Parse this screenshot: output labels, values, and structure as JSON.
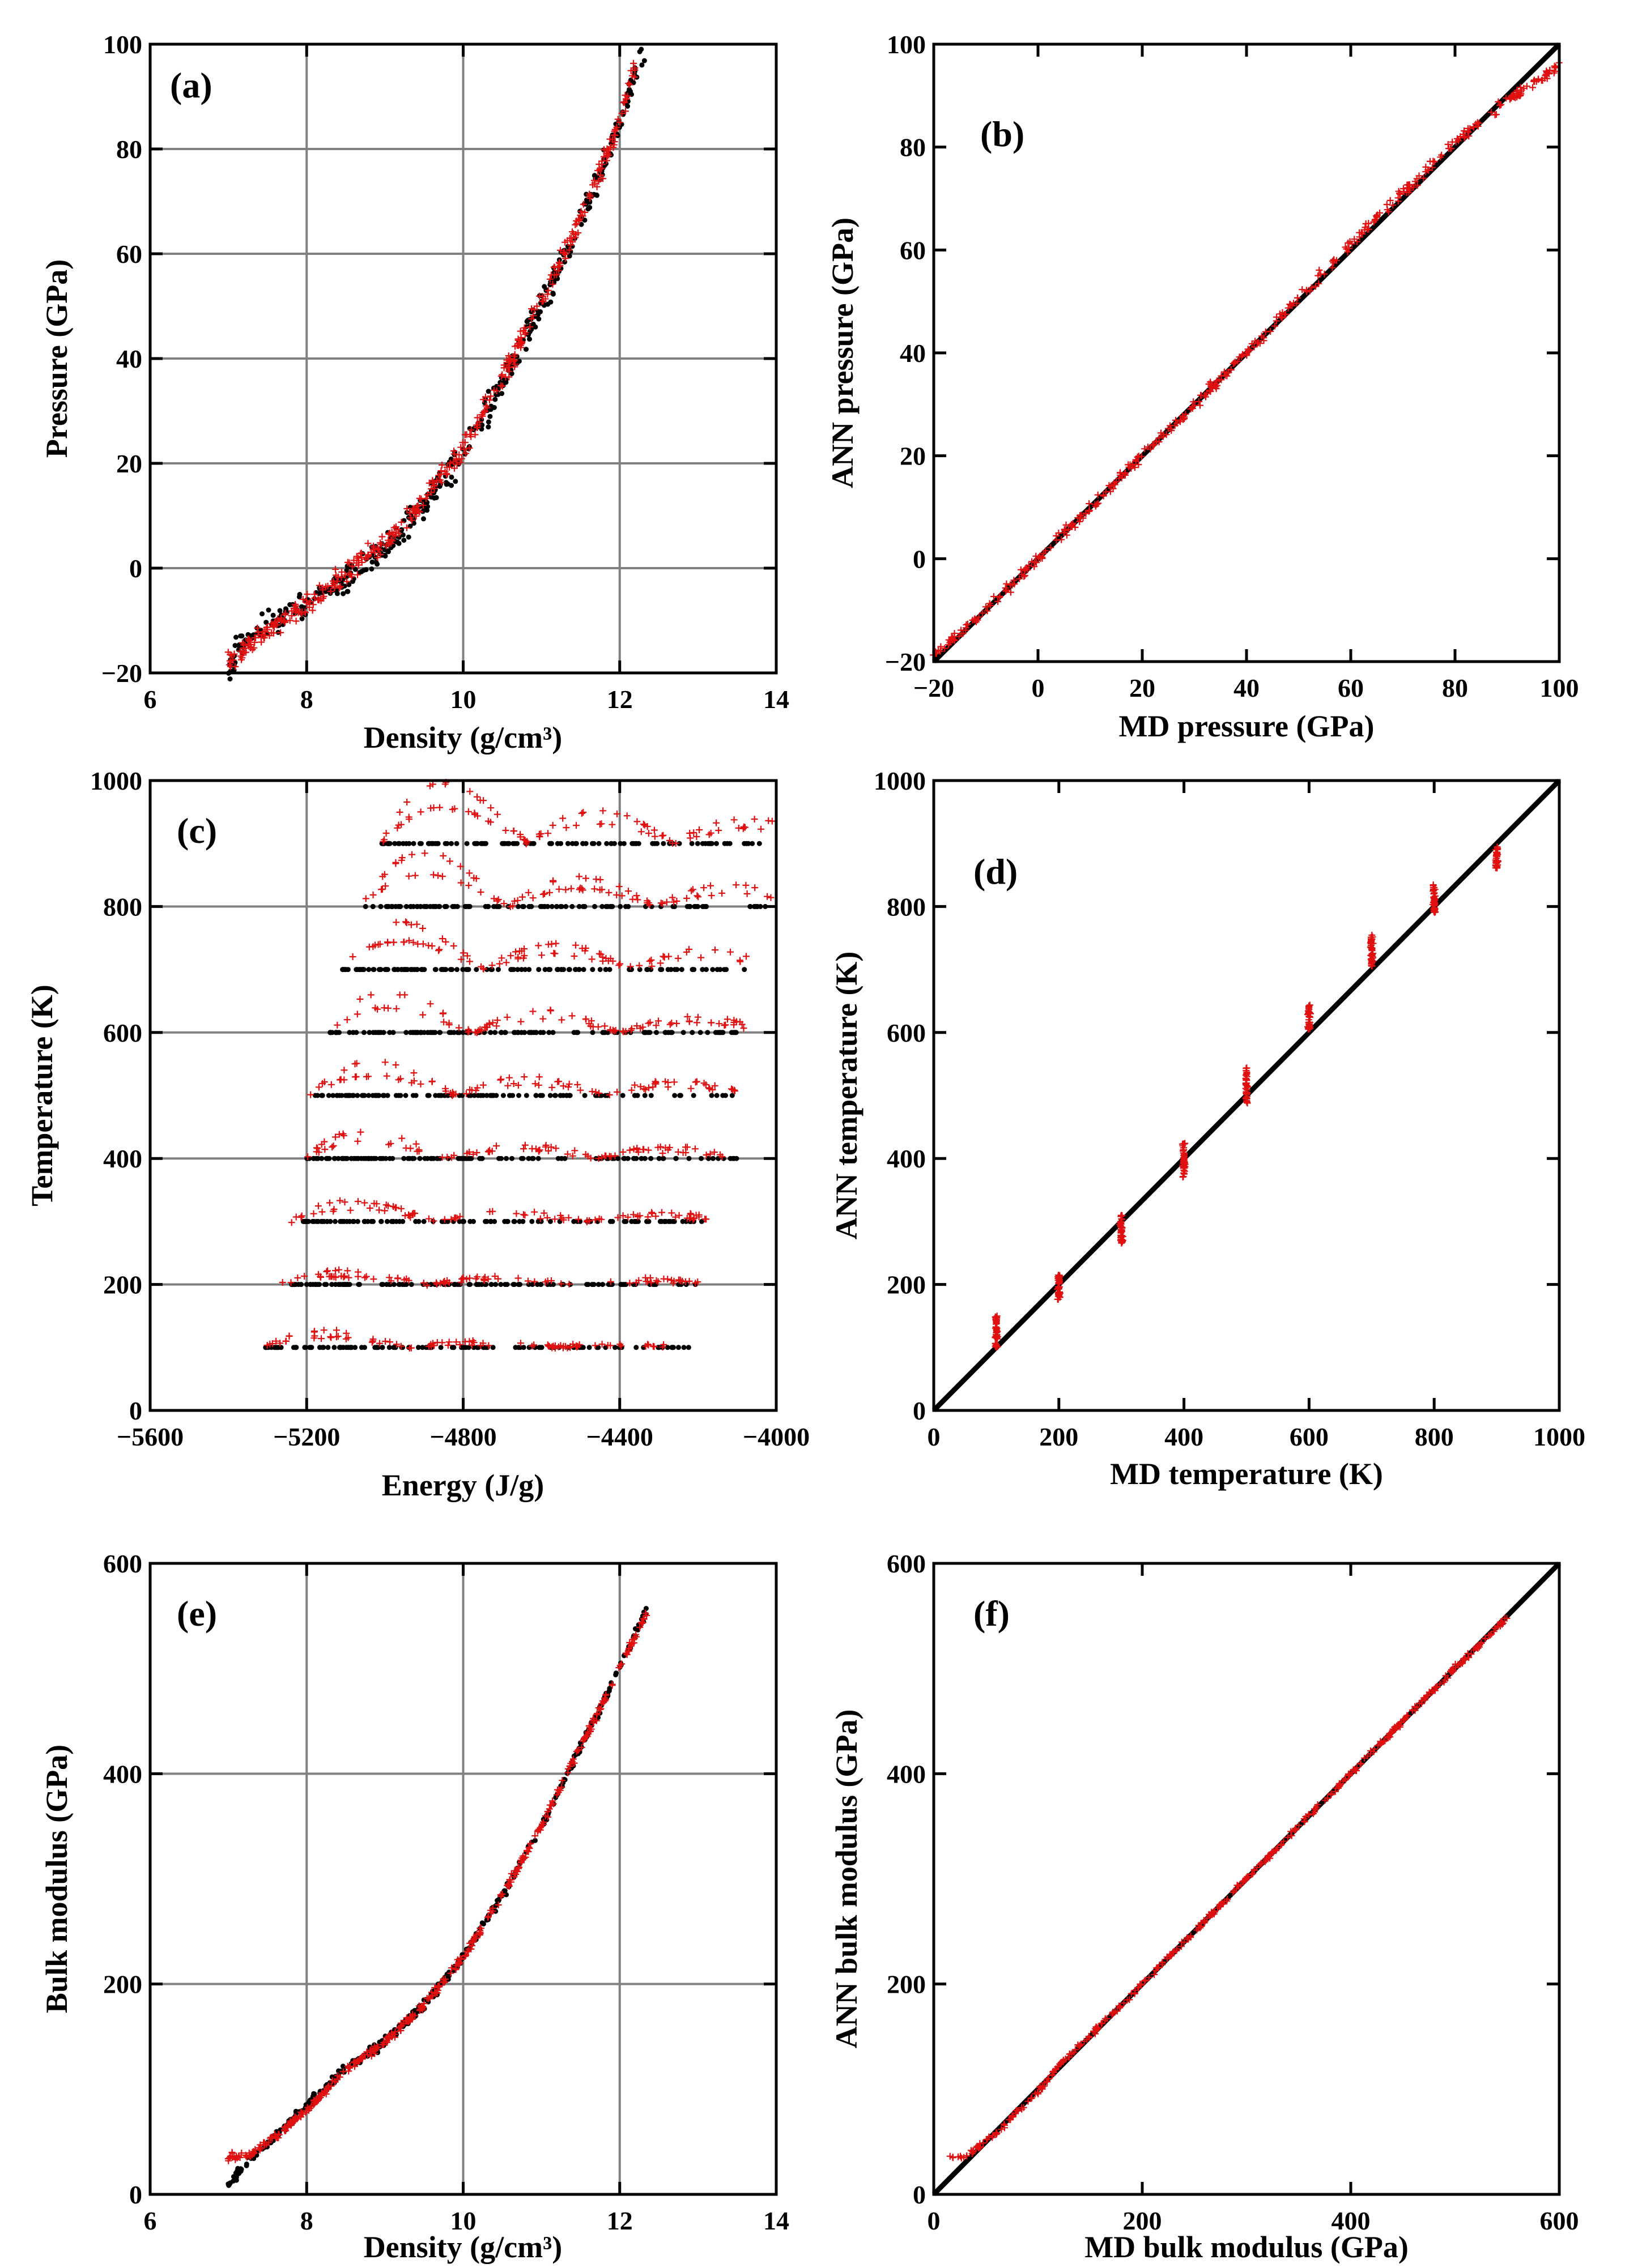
{
  "figure": {
    "colors": {
      "md": "#000000",
      "ann": "#e01010",
      "grid": "#808080",
      "axis": "#000000"
    }
  },
  "chart_data": [
    {
      "id": "a",
      "panel_label": "(a)",
      "type": "scatter",
      "xlabel": "Density (g/cm³)",
      "ylabel": "Pressure (GPa)",
      "xlim": [
        6,
        14
      ],
      "ylim": [
        -20,
        100
      ],
      "xticks": [
        6,
        8,
        10,
        12,
        14
      ],
      "yticks": [
        -20,
        0,
        20,
        40,
        60,
        80,
        100
      ],
      "xtick_labels": [
        "6",
        "8",
        "10",
        "12",
        "14"
      ],
      "ytick_labels": [
        "−20",
        "0",
        "20",
        "40",
        "60",
        "80",
        "100"
      ],
      "grid": true,
      "series": [
        {
          "name": "MD",
          "color": "#000000",
          "marker": "dot",
          "band": [
            [
              7.0,
              -19
            ],
            [
              7.2,
              -14
            ],
            [
              7.5,
              -11
            ],
            [
              8.0,
              -7
            ],
            [
              8.5,
              -2
            ],
            [
              9.0,
              4
            ],
            [
              9.5,
              12
            ],
            [
              10.0,
              22
            ],
            [
              10.5,
              35
            ],
            [
              11.0,
              50
            ],
            [
              11.5,
              66
            ],
            [
              12.0,
              85
            ],
            [
              12.3,
              99
            ]
          ],
          "spread": 4
        },
        {
          "name": "ANN",
          "color": "#e01010",
          "marker": "plus",
          "band": [
            [
              7.0,
              -18
            ],
            [
              7.5,
              -12
            ],
            [
              8.0,
              -7
            ],
            [
              8.5,
              -1
            ],
            [
              9.0,
              5
            ],
            [
              9.5,
              13
            ],
            [
              10.0,
              23
            ],
            [
              10.5,
              36
            ],
            [
              11.0,
              51
            ],
            [
              11.5,
              67
            ],
            [
              12.0,
              85
            ],
            [
              12.2,
              96
            ]
          ],
          "spread": 3
        }
      ]
    },
    {
      "id": "b",
      "panel_label": "(b)",
      "type": "scatter",
      "xlabel": "MD pressure (GPa)",
      "ylabel": "ANN pressure (GPa)",
      "xlim": [
        -20,
        100
      ],
      "ylim": [
        -20,
        100
      ],
      "xticks": [
        -20,
        0,
        20,
        40,
        60,
        80,
        100
      ],
      "yticks": [
        -20,
        0,
        20,
        40,
        60,
        80,
        100
      ],
      "xtick_labels": [
        "−20",
        "0",
        "20",
        "40",
        "60",
        "80",
        "100"
      ],
      "ytick_labels": [
        "−20",
        "0",
        "20",
        "40",
        "60",
        "80",
        "100"
      ],
      "grid": false,
      "series": [
        {
          "name": "y=x",
          "color": "#000000",
          "marker": "line",
          "x": [
            -20,
            100
          ],
          "y": [
            -20,
            100
          ]
        },
        {
          "name": "ANN",
          "color": "#e01010",
          "marker": "plus",
          "band": [
            [
              -20,
              -19
            ],
            [
              -10,
              -10
            ],
            [
              0,
              0
            ],
            [
              5,
              5
            ],
            [
              20,
              20
            ],
            [
              40,
              40
            ],
            [
              60,
              61
            ],
            [
              80,
              81
            ],
            [
              90,
              89
            ],
            [
              100,
              96
            ]
          ],
          "spread": 1.5
        }
      ]
    },
    {
      "id": "c",
      "panel_label": "(c)",
      "type": "scatter",
      "xlabel": "Energy (J/g)",
      "ylabel": "Temperature (K)",
      "xlim": [
        -5600,
        -4000
      ],
      "ylim": [
        0,
        1000
      ],
      "xticks": [
        -5600,
        -5200,
        -4800,
        -4400,
        -4000
      ],
      "yticks": [
        0,
        200,
        400,
        600,
        800,
        1000
      ],
      "xtick_labels": [
        "−5600",
        "−5200",
        "−4800",
        "−4400",
        "−4000"
      ],
      "ytick_labels": [
        "0",
        "200",
        "400",
        "600",
        "800",
        "1000"
      ],
      "grid": true,
      "series": [
        {
          "name": "MD",
          "color": "#000000",
          "marker": "dot",
          "temperatures": [
            100,
            200,
            300,
            400,
            500,
            600,
            700,
            800,
            900
          ],
          "energy_ranges": [
            [
              -5310,
              -4220
            ],
            [
              -5240,
              -4200
            ],
            [
              -5210,
              -4190
            ],
            [
              -5200,
              -4100
            ],
            [
              -5180,
              -4100
            ],
            [
              -5140,
              -4100
            ],
            [
              -5110,
              -4080
            ],
            [
              -5050,
              -4010
            ],
            [
              -5010,
              -4010
            ]
          ]
        },
        {
          "name": "ANN",
          "color": "#e01010",
          "marker": "plus",
          "temperatures": [
            100,
            200,
            300,
            400,
            500,
            600,
            700,
            800,
            900
          ],
          "energy_ranges": [
            [
              -5310,
              -4220
            ],
            [
              -5270,
              -4190
            ],
            [
              -5240,
              -4170
            ],
            [
              -5210,
              -4130
            ],
            [
              -5190,
              -4100
            ],
            [
              -5150,
              -4080
            ],
            [
              -5120,
              -4060
            ],
            [
              -5060,
              -4010
            ],
            [
              -5010,
              -4010
            ]
          ]
        }
      ]
    },
    {
      "id": "d",
      "panel_label": "(d)",
      "type": "scatter",
      "xlabel": "MD temperature (K)",
      "ylabel": "ANN temperature (K)",
      "xlim": [
        0,
        1000
      ],
      "ylim": [
        0,
        1000
      ],
      "xticks": [
        0,
        200,
        400,
        600,
        800,
        1000
      ],
      "yticks": [
        0,
        200,
        400,
        600,
        800,
        1000
      ],
      "xtick_labels": [
        "0",
        "200",
        "400",
        "600",
        "800",
        "1000"
      ],
      "ytick_labels": [
        "0",
        "200",
        "400",
        "600",
        "800",
        "1000"
      ],
      "grid": false,
      "series": [
        {
          "name": "y=x",
          "color": "#000000",
          "marker": "line",
          "x": [
            0,
            1000
          ],
          "y": [
            0,
            1000
          ]
        },
        {
          "name": "ANN",
          "color": "#e01010",
          "marker": "plus",
          "clusters": [
            [
              100,
              100,
              150
            ],
            [
              200,
              175,
              215
            ],
            [
              300,
              265,
              310
            ],
            [
              400,
              370,
              425
            ],
            [
              500,
              485,
              545
            ],
            [
              600,
              605,
              645
            ],
            [
              700,
              705,
              755
            ],
            [
              800,
              790,
              835
            ],
            [
              900,
              860,
              895
            ]
          ]
        }
      ]
    },
    {
      "id": "e",
      "panel_label": "(e)",
      "type": "scatter",
      "xlabel": "Density (g/cm³)",
      "ylabel": "Bulk modulus (GPa)",
      "xlim": [
        6,
        14
      ],
      "ylim": [
        0,
        600
      ],
      "xticks": [
        6,
        8,
        10,
        12,
        14
      ],
      "yticks": [
        0,
        200,
        400,
        600
      ],
      "xtick_labels": [
        "6",
        "8",
        "10",
        "12",
        "14"
      ],
      "ytick_labels": [
        "0",
        "200",
        "400",
        "600"
      ],
      "grid": true,
      "series": [
        {
          "name": "MD",
          "color": "#000000",
          "marker": "dot",
          "band": [
            [
              7.0,
              10
            ],
            [
              7.3,
              35
            ],
            [
              7.6,
              55
            ],
            [
              8.0,
              85
            ],
            [
              8.5,
              120
            ],
            [
              9.0,
              145
            ],
            [
              9.5,
              180
            ],
            [
              10.0,
              225
            ],
            [
              10.5,
              285
            ],
            [
              11.0,
              350
            ],
            [
              11.5,
              425
            ],
            [
              12.0,
              500
            ],
            [
              12.35,
              558
            ]
          ],
          "spread": 6
        },
        {
          "name": "ANN",
          "color": "#e01010",
          "marker": "plus",
          "band": [
            [
              7.0,
              35
            ],
            [
              7.3,
              38
            ],
            [
              7.6,
              55
            ],
            [
              8.0,
              80
            ],
            [
              8.5,
              118
            ],
            [
              9.0,
              145
            ],
            [
              9.5,
              180
            ],
            [
              10.0,
              225
            ],
            [
              10.5,
              285
            ],
            [
              11.0,
              350
            ],
            [
              11.5,
              425
            ],
            [
              12.0,
              500
            ],
            [
              12.35,
              555
            ]
          ],
          "spread": 5
        }
      ]
    },
    {
      "id": "f",
      "panel_label": "(f)",
      "type": "scatter",
      "xlabel": "MD bulk modulus (GPa)",
      "ylabel": "ANN bulk modulus (GPa)",
      "xlim": [
        0,
        600
      ],
      "ylim": [
        0,
        600
      ],
      "xticks": [
        0,
        200,
        400,
        600
      ],
      "yticks": [
        0,
        200,
        400,
        600
      ],
      "xtick_labels": [
        "0",
        "200",
        "400",
        "600"
      ],
      "ytick_labels": [
        "0",
        "200",
        "400",
        "600"
      ],
      "grid": false,
      "series": [
        {
          "name": "y=x",
          "color": "#000000",
          "marker": "line",
          "x": [
            0,
            600
          ],
          "y": [
            0,
            600
          ]
        },
        {
          "name": "ANN",
          "color": "#e01010",
          "marker": "plus",
          "band": [
            [
              15,
              35
            ],
            [
              30,
              35
            ],
            [
              60,
              58
            ],
            [
              100,
              98
            ],
            [
              120,
              122
            ],
            [
              200,
              200
            ],
            [
              300,
              300
            ],
            [
              400,
              400
            ],
            [
              500,
              500
            ],
            [
              550,
              548
            ]
          ],
          "spread": 3
        }
      ]
    }
  ]
}
